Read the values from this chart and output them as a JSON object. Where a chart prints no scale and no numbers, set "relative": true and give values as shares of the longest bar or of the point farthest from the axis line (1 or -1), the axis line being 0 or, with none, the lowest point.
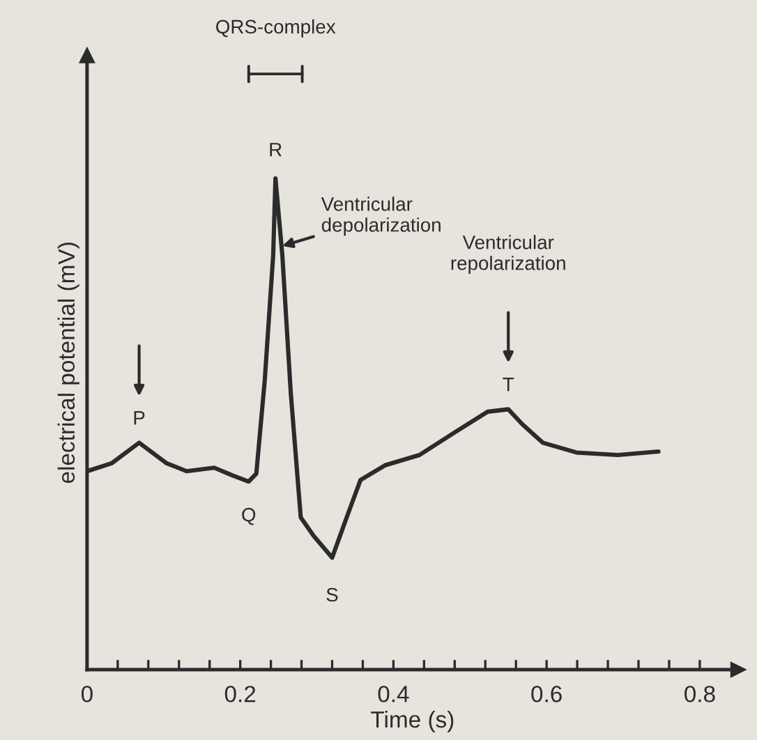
{
  "chart_data": {
    "type": "line",
    "relative": true,
    "xlabel": "Time (s)",
    "ylabel": "electrical potential (mV)",
    "x": [
      0,
      0.032,
      0.068,
      0.104,
      0.13,
      0.166,
      0.189,
      0.211,
      0.221,
      0.232,
      0.243,
      0.246,
      0.255,
      0.266,
      0.279,
      0.296,
      0.32,
      0.339,
      0.357,
      0.389,
      0.434,
      0.479,
      0.523,
      0.55,
      0.568,
      0.595,
      0.639,
      0.693,
      0.746
    ],
    "series": [
      {
        "color": "#2b2b2b",
        "values": [
          0.404,
          0.42,
          0.462,
          0.42,
          0.404,
          0.411,
          0.396,
          0.383,
          0.399,
          0.589,
          0.843,
          1.0,
          0.843,
          0.563,
          0.31,
          0.272,
          0.228,
          0.31,
          0.386,
          0.416,
          0.437,
          0.482,
          0.525,
          0.53,
          0.5,
          0.462,
          0.442,
          0.437,
          0.444
        ]
      }
    ],
    "xlim": [
      0,
      0.85
    ],
    "xticks": [
      0,
      {
        "value": 0.04,
        "label": null
      },
      {
        "value": 0.08,
        "label": null
      },
      {
        "value": 0.12,
        "label": null
      },
      {
        "value": 0.16,
        "label": null
      },
      0.2,
      {
        "value": 0.24,
        "label": null
      },
      {
        "value": 0.28,
        "label": null
      },
      {
        "value": 0.32,
        "label": null
      },
      {
        "value": 0.36,
        "label": null
      },
      0.4,
      {
        "value": 0.44,
        "label": null
      },
      {
        "value": 0.48,
        "label": null
      },
      {
        "value": 0.52,
        "label": null
      },
      {
        "value": 0.56,
        "label": null
      },
      0.6,
      {
        "value": 0.64,
        "label": null
      },
      {
        "value": 0.68,
        "label": null
      },
      {
        "value": 0.72,
        "label": null
      },
      {
        "value": 0.76,
        "label": null
      },
      0.8
    ],
    "grid": false,
    "marker": "none",
    "line_style": "solid",
    "annotations": [
      {
        "text": "P",
        "x": 0.068,
        "y": 0.462
      },
      {
        "text": "Q",
        "x": 0.211,
        "y": 0.383
      },
      {
        "text": "R",
        "x": 0.246,
        "y": 1.0
      },
      {
        "text": "S",
        "x": 0.32,
        "y": 0.228
      },
      {
        "text": "T",
        "x": 0.55,
        "y": 0.53
      },
      {
        "text": "Ventricular\ndepolarization",
        "x": 0.25,
        "y": 0.86
      },
      "Ventricular\nrepolarization",
      "QRS-complex"
    ]
  }
}
